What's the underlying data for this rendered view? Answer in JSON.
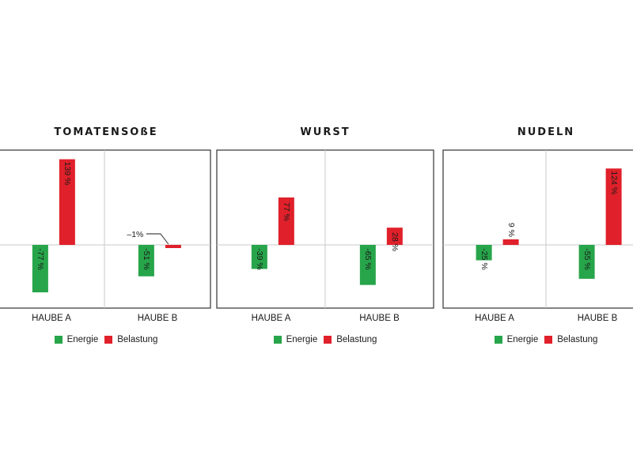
{
  "legend": {
    "energy_label": "Energie",
    "load_label": "Belastung"
  },
  "colors": {
    "energy": "#27a54a",
    "load": "#e0202a",
    "frame": "#333333",
    "grid": "#c8c8c8"
  },
  "chart_data": [
    {
      "type": "bar",
      "title": "TOMATENSOßE",
      "categories": [
        "HAUBE A",
        "HAUBE B"
      ],
      "series": [
        {
          "name": "Energie",
          "values": [
            -77,
            -51
          ],
          "labels": [
            "-77 %",
            "-51 %"
          ]
        },
        {
          "name": "Belastung",
          "values": [
            139,
            -1
          ],
          "labels": [
            "139 %",
            "–1%"
          ]
        }
      ],
      "ylim": [
        -100,
        150
      ],
      "grid": true,
      "legend": "bottom"
    },
    {
      "type": "bar",
      "title": "WURST",
      "categories": [
        "HAUBE A",
        "HAUBE B"
      ],
      "series": [
        {
          "name": "Energie",
          "values": [
            -39,
            -65
          ],
          "labels": [
            "-39 %",
            "-65 %"
          ]
        },
        {
          "name": "Belastung",
          "values": [
            77,
            28
          ],
          "labels": [
            "77 %",
            "28 %"
          ]
        }
      ],
      "ylim": [
        -100,
        150
      ],
      "grid": true,
      "legend": "bottom"
    },
    {
      "type": "bar",
      "title": "NUDELN",
      "categories": [
        "HAUBE A",
        "HAUBE B"
      ],
      "series": [
        {
          "name": "Energie",
          "values": [
            -25,
            -55
          ],
          "labels": [
            "-25 %",
            "-55 %"
          ]
        },
        {
          "name": "Belastung",
          "values": [
            9,
            124
          ],
          "labels": [
            "9 %",
            "124 %"
          ]
        }
      ],
      "ylim": [
        -100,
        150
      ],
      "grid": true,
      "legend": "bottom"
    }
  ]
}
